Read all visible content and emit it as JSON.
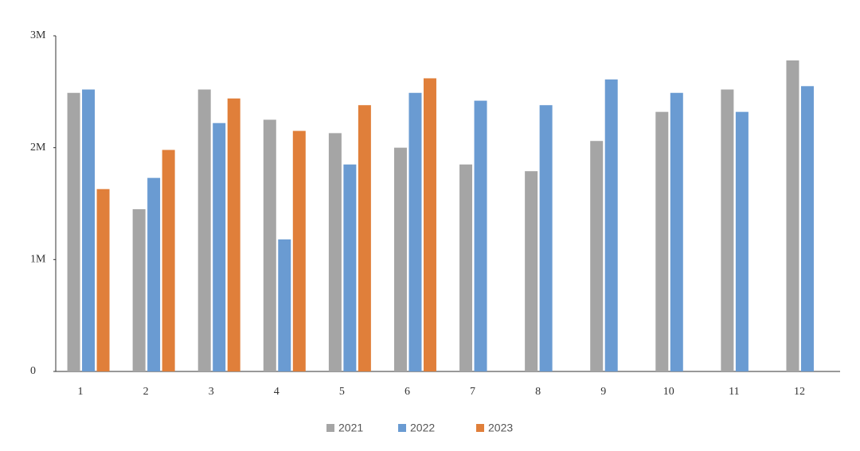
{
  "chart_data": {
    "type": "bar",
    "categories": [
      "1",
      "2",
      "3",
      "4",
      "5",
      "6",
      "7",
      "8",
      "9",
      "10",
      "11",
      "12"
    ],
    "series": [
      {
        "name": "2021",
        "color": "#a5a5a5",
        "values": [
          2490000,
          1450000,
          2520000,
          2250000,
          2130000,
          2000000,
          1850000,
          1790000,
          2060000,
          2320000,
          2520000,
          2780000
        ]
      },
      {
        "name": "2022",
        "color": "#6a9bd2",
        "values": [
          2520000,
          1730000,
          2220000,
          1180000,
          1850000,
          2490000,
          2420000,
          2380000,
          2610000,
          2490000,
          2320000,
          2550000
        ]
      },
      {
        "name": "2023",
        "color": "#e07f3a",
        "values": [
          1630000,
          1980000,
          2440000,
          2150000,
          2380000,
          2620000,
          null,
          null,
          null,
          null,
          null,
          null
        ]
      }
    ],
    "ylim": [
      0,
      3000000
    ],
    "yticks": [
      0,
      {
        "value": 1000000,
        "label": "1M"
      },
      {
        "value": 2000000,
        "label": "2M"
      },
      {
        "value": 3000000,
        "label": "3M"
      }
    ],
    "grid": false,
    "legend": "bottom"
  }
}
